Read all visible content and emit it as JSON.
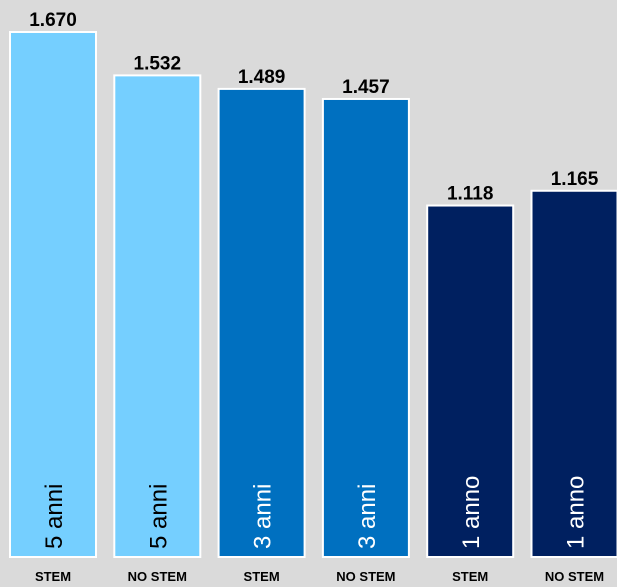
{
  "chart_data": {
    "type": "bar",
    "categories": [
      "STEM",
      "NO STEM",
      "STEM",
      "NO STEM",
      "STEM",
      "NO STEM"
    ],
    "values": [
      1670,
      1532,
      1489,
      1457,
      1118,
      1165
    ],
    "value_labels": [
      "1.670",
      "1.532",
      "1.489",
      "1.457",
      "1.118",
      "1.165"
    ],
    "bar_labels": [
      "5 anni",
      "5 anni",
      "3 anni",
      "3 anni",
      "1 anno",
      "1 anno"
    ],
    "colors": [
      "#75cfff",
      "#75cfff",
      "#0070c0",
      "#0070c0",
      "#002060",
      "#002060"
    ],
    "bar_label_colors": [
      "#000000",
      "#000000",
      "#ffffff",
      "#ffffff",
      "#ffffff",
      "#ffffff"
    ]
  }
}
